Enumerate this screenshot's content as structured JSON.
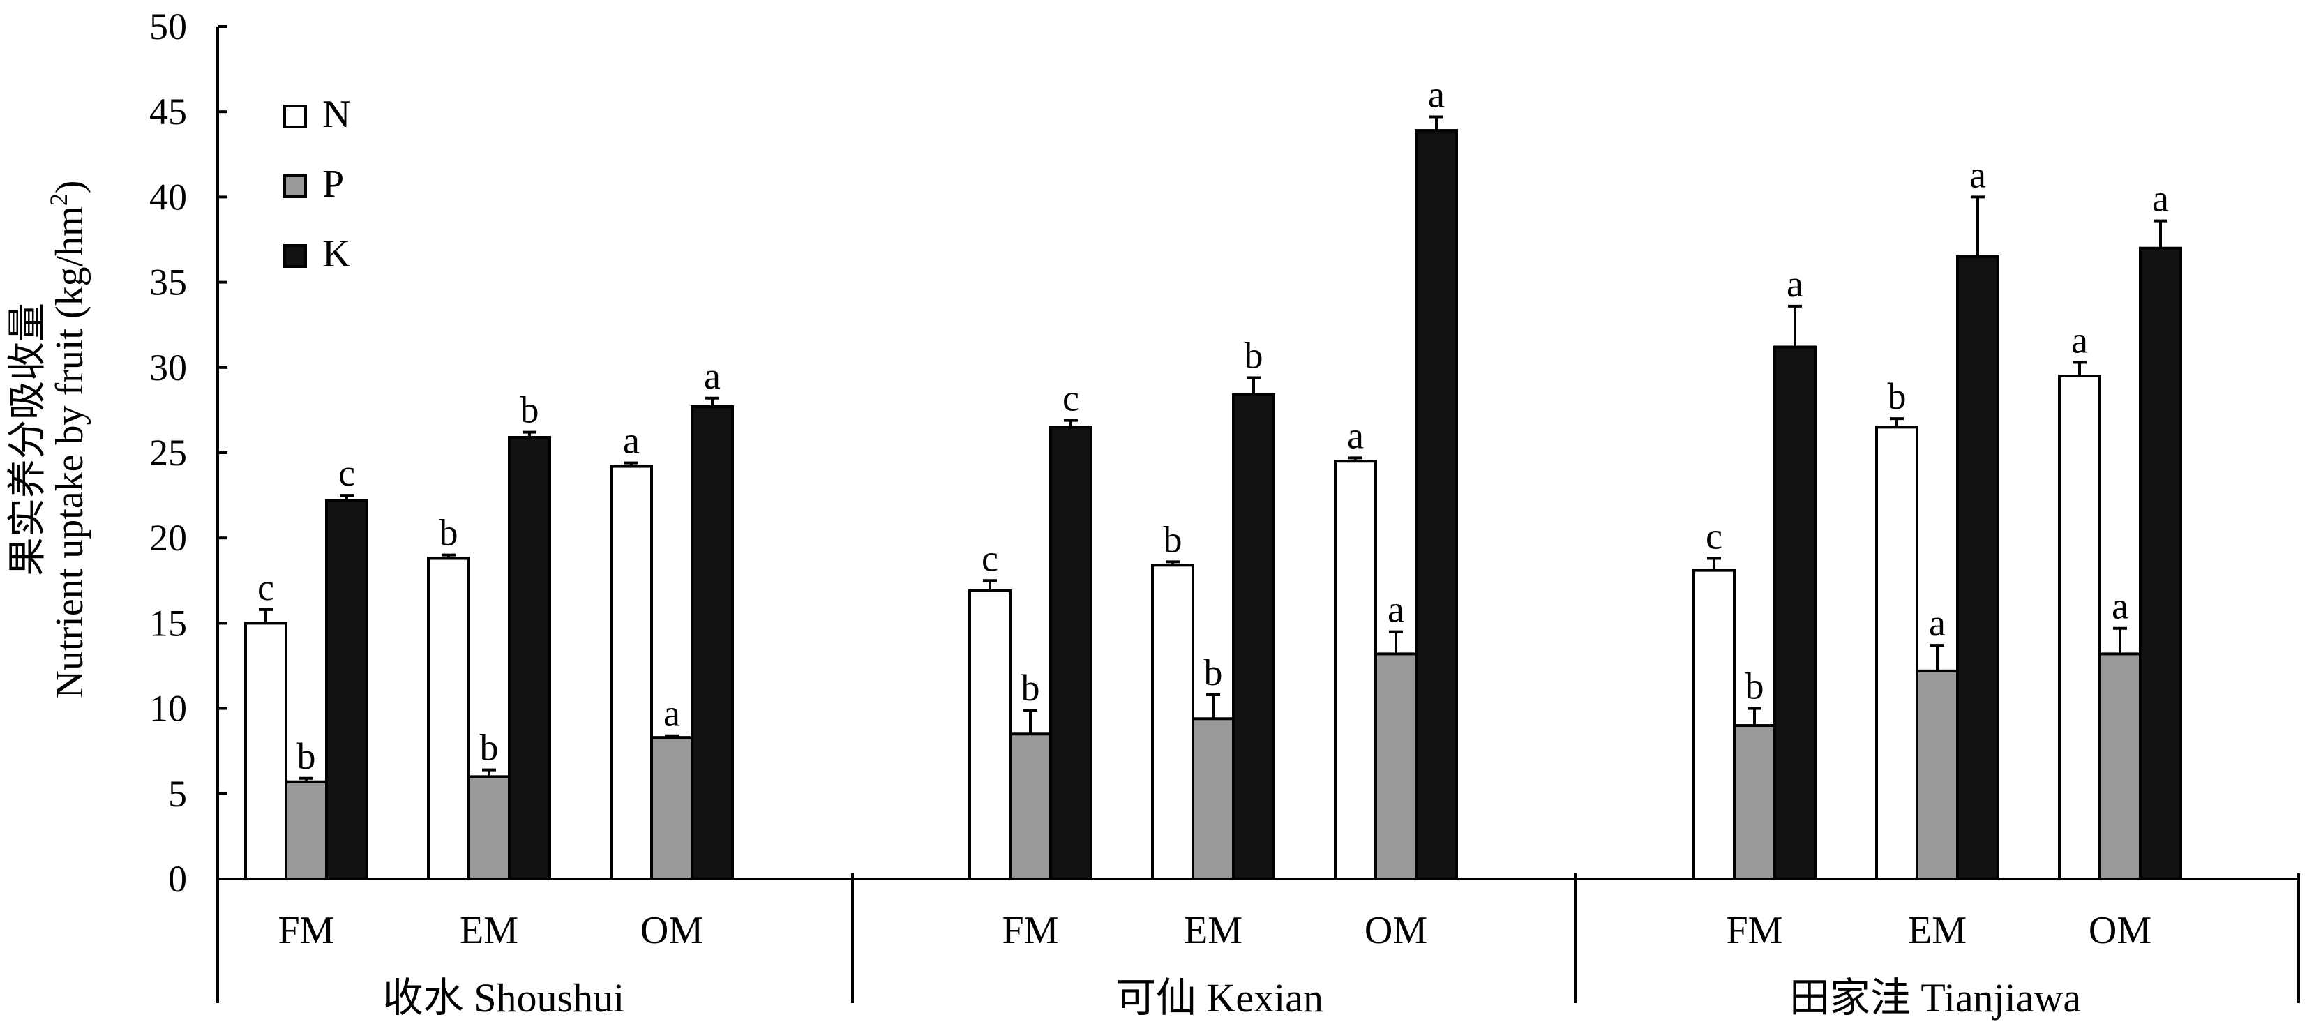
{
  "chart_data": {
    "type": "bar",
    "ylabel_cn": "果实养分吸收量",
    "ylabel": "Nutrient uptake by fruit (kg/hm",
    "ylabel_sup": "2",
    "ylabel_end": ")",
    "ylim": [
      0,
      50
    ],
    "ytick_step": 5,
    "yticks": [
      "0",
      "5",
      "10",
      "15",
      "20",
      "25",
      "30",
      "35",
      "40",
      "45",
      "50"
    ],
    "legend_position": "top-left",
    "groups": [
      {
        "label": "收水 Shoushui",
        "categories": [
          {
            "label": "FM",
            "N": {
              "value": 15.0,
              "error": 0.8,
              "sig": "c"
            },
            "P": {
              "value": 5.7,
              "error": 0.2,
              "sig": "b"
            },
            "K": {
              "value": 22.2,
              "error": 0.3,
              "sig": "c"
            }
          },
          {
            "label": "EM",
            "N": {
              "value": 18.8,
              "error": 0.2,
              "sig": "b"
            },
            "P": {
              "value": 6.0,
              "error": 0.4,
              "sig": "b"
            },
            "K": {
              "value": 25.9,
              "error": 0.3,
              "sig": "b"
            }
          },
          {
            "label": "OM",
            "N": {
              "value": 24.2,
              "error": 0.2,
              "sig": "a"
            },
            "P": {
              "value": 8.3,
              "error": 0.1,
              "sig": "a"
            },
            "K": {
              "value": 27.7,
              "error": 0.5,
              "sig": "a"
            }
          }
        ]
      },
      {
        "label": "可仙 Kexian",
        "categories": [
          {
            "label": "FM",
            "N": {
              "value": 16.9,
              "error": 0.6,
              "sig": "c"
            },
            "P": {
              "value": 8.5,
              "error": 1.4,
              "sig": "b"
            },
            "K": {
              "value": 26.5,
              "error": 0.4,
              "sig": "c"
            }
          },
          {
            "label": "EM",
            "N": {
              "value": 18.4,
              "error": 0.2,
              "sig": "b"
            },
            "P": {
              "value": 9.4,
              "error": 1.4,
              "sig": "b"
            },
            "K": {
              "value": 28.4,
              "error": 1.0,
              "sig": "b"
            }
          },
          {
            "label": "OM",
            "N": {
              "value": 24.5,
              "error": 0.2,
              "sig": "a"
            },
            "P": {
              "value": 13.2,
              "error": 1.3,
              "sig": "a"
            },
            "K": {
              "value": 43.9,
              "error": 0.8,
              "sig": "a"
            }
          }
        ]
      },
      {
        "label": "田家洼 Tianjiawa",
        "categories": [
          {
            "label": "FM",
            "N": {
              "value": 18.1,
              "error": 0.7,
              "sig": "c"
            },
            "P": {
              "value": 9.0,
              "error": 1.0,
              "sig": "b"
            },
            "K": {
              "value": 31.2,
              "error": 2.4,
              "sig": "a"
            }
          },
          {
            "label": "EM",
            "N": {
              "value": 26.5,
              "error": 0.5,
              "sig": "b"
            },
            "P": {
              "value": 12.2,
              "error": 1.5,
              "sig": "a"
            },
            "K": {
              "value": 36.5,
              "error": 3.5,
              "sig": "a"
            }
          },
          {
            "label": "OM",
            "N": {
              "value": 29.5,
              "error": 0.8,
              "sig": "a"
            },
            "P": {
              "value": 13.2,
              "error": 1.5,
              "sig": "a"
            },
            "K": {
              "value": 37.0,
              "error": 1.6,
              "sig": "a"
            }
          }
        ]
      }
    ],
    "series": [
      {
        "key": "N",
        "name": "N",
        "color": "#ffffff"
      },
      {
        "key": "P",
        "name": "P",
        "color": "#999999"
      },
      {
        "key": "K",
        "name": "K",
        "color": "#111111"
      }
    ]
  }
}
